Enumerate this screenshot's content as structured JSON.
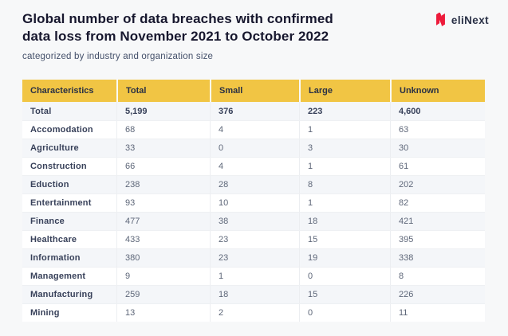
{
  "header": {
    "title_line1": "Global number of data breaches with confirmed",
    "title_line2": "data loss from November 2021 to October 2022",
    "subtitle": "categorized by industry and organization size"
  },
  "logo": {
    "brand": "eliNext",
    "icon": "elinext-n-icon",
    "icon_color": "#ED1B3B",
    "text_color": "#2A3147"
  },
  "colors": {
    "page_bg": "#F7F8F9",
    "table_header_bg": "#F1C544",
    "table_header_text": "#2A3144",
    "row_alt_bg": "#F4F6F9",
    "row_bg": "#FFFFFF",
    "label_text": "#38415A",
    "value_text": "#5E6779",
    "divider": "#ECEEF1",
    "title_text": "#17172E",
    "subtitle_text": "#44506A"
  },
  "table": {
    "columns": [
      "Characteristics",
      "Total",
      "Small",
      "Large",
      "Unknown"
    ],
    "rows": [
      {
        "label": "Total",
        "values": [
          "5,199",
          "376",
          "223",
          "4,600"
        ],
        "bold": true
      },
      {
        "label": "Accomodation",
        "values": [
          "68",
          "4",
          "1",
          "63"
        ]
      },
      {
        "label": "Agriculture",
        "values": [
          "33",
          "0",
          "3",
          "30"
        ]
      },
      {
        "label": "Construction",
        "values": [
          "66",
          "4",
          "1",
          "61"
        ]
      },
      {
        "label": "Eduction",
        "values": [
          "238",
          "28",
          "8",
          "202"
        ]
      },
      {
        "label": "Entertainment",
        "values": [
          "93",
          "10",
          "1",
          "82"
        ]
      },
      {
        "label": "Finance",
        "values": [
          "477",
          "38",
          "18",
          "421"
        ]
      },
      {
        "label": "Healthcare",
        "values": [
          "433",
          "23",
          "15",
          "395"
        ]
      },
      {
        "label": "Information",
        "values": [
          "380",
          "23",
          "19",
          "338"
        ]
      },
      {
        "label": "Management",
        "values": [
          "9",
          "1",
          "0",
          "8"
        ]
      },
      {
        "label": "Manufacturing",
        "values": [
          "259",
          "18",
          "15",
          "226"
        ]
      },
      {
        "label": "Mining",
        "values": [
          "13",
          "2",
          "0",
          "11"
        ]
      }
    ]
  },
  "chart_data": {
    "type": "table",
    "title": "Global number of data breaches with confirmed data loss from November 2021 to October 2022",
    "subtitle": "categorized by industry and organization size",
    "columns": [
      "Characteristics",
      "Total",
      "Small",
      "Large",
      "Unknown"
    ],
    "rows": [
      [
        "Total",
        5199,
        376,
        223,
        4600
      ],
      [
        "Accomodation",
        68,
        4,
        1,
        63
      ],
      [
        "Agriculture",
        33,
        0,
        3,
        30
      ],
      [
        "Construction",
        66,
        4,
        1,
        61
      ],
      [
        "Eduction",
        238,
        28,
        8,
        202
      ],
      [
        "Entertainment",
        93,
        10,
        1,
        82
      ],
      [
        "Finance",
        477,
        38,
        18,
        421
      ],
      [
        "Healthcare",
        433,
        23,
        15,
        395
      ],
      [
        "Information",
        380,
        23,
        19,
        338
      ],
      [
        "Management",
        9,
        1,
        0,
        8
      ],
      [
        "Manufacturing",
        259,
        18,
        15,
        226
      ],
      [
        "Mining",
        13,
        2,
        0,
        11
      ]
    ]
  }
}
